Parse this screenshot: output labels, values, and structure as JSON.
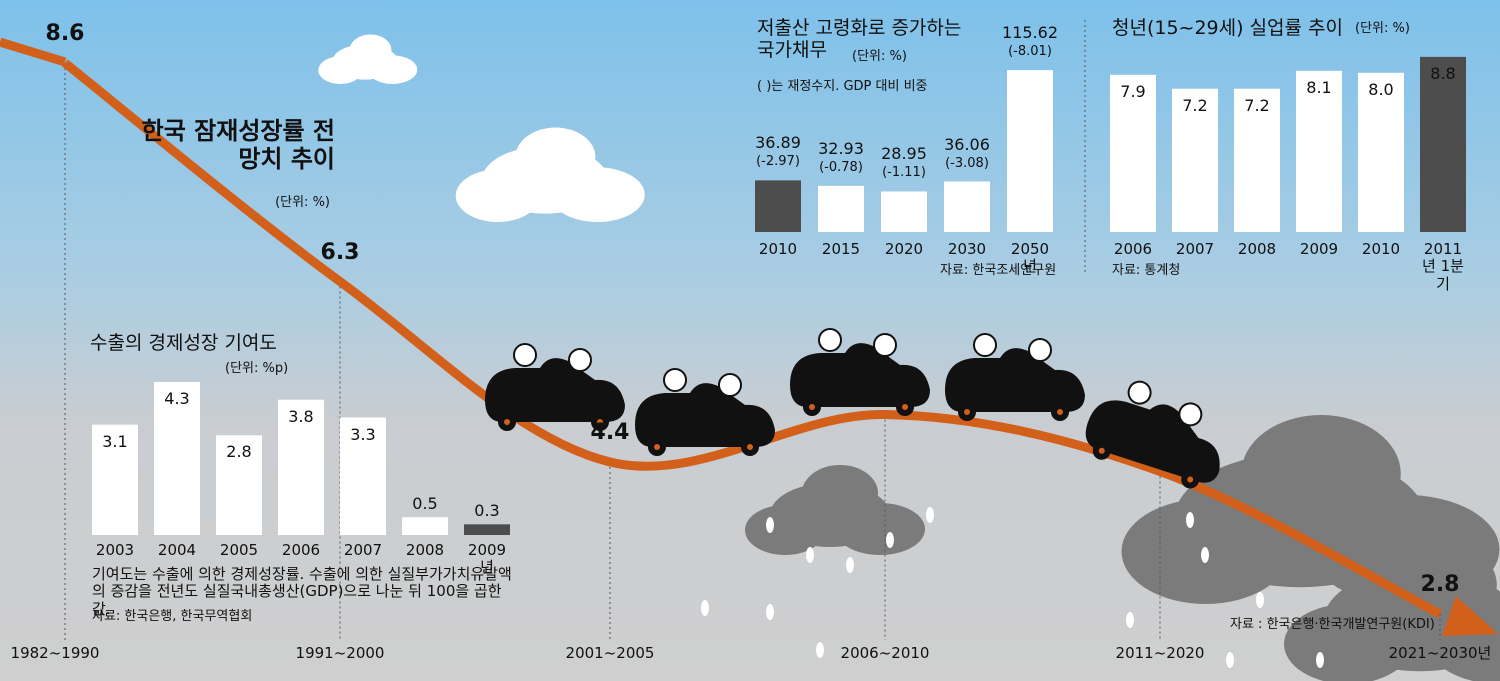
{
  "chart_data": [
    {
      "type": "line",
      "title": "한국 잠재성장률 전망치 추이",
      "unit": "(단위: %)",
      "categories": [
        "1982~1990",
        "1991~2000",
        "2001~2005",
        "2006~2010",
        "2011~2020",
        "2021~2030년"
      ],
      "values": [
        8.6,
        6.3,
        4.4,
        4.9,
        4.3,
        2.8
      ],
      "color": "#d2601a",
      "source": "자료 : 한국은행·한국개발연구원(KDI)"
    },
    {
      "type": "bar",
      "title": "수출의 경제성장 기여도",
      "unit": "(단위: %p)",
      "categories": [
        "2003",
        "2004",
        "2005",
        "2006",
        "2007",
        "2008",
        "2009년"
      ],
      "values": [
        3.1,
        4.3,
        2.8,
        3.8,
        3.3,
        0.5,
        0.3
      ],
      "colors": [
        "#ffffff",
        "#ffffff",
        "#ffffff",
        "#ffffff",
        "#ffffff",
        "#ffffff",
        "#4d4d4d"
      ],
      "note": "기여도는 수출에 의한 경제성장률. 수출에 의한 실질부가가치유발액의 증감을 전년도 실질국내총생산(GDP)으로 나눈 뒤 100을 곱한 값.",
      "source": "자료: 한국은행, 한국무역협회"
    },
    {
      "type": "bar",
      "title": "저출산 고령화로 증가하는 국가채무",
      "unit": "(단위: %)",
      "note": "( )는 재정수지. GDP 대비 비중",
      "categories": [
        "2010",
        "2015",
        "2020",
        "2030",
        "2050년"
      ],
      "values": [
        36.89,
        32.93,
        28.95,
        36.06,
        115.62
      ],
      "balance_values": [
        -2.97,
        -0.78,
        -1.11,
        -3.08,
        -8.01
      ],
      "balance_value_labels": [
        "(-2.97)",
        "(-0.78)",
        "(-1.11)",
        "(-3.08)",
        "(-8.01)"
      ],
      "colors": [
        "#4d4d4d",
        "#ffffff",
        "#ffffff",
        "#ffffff",
        "#ffffff"
      ],
      "source": "자료: 한국조세연구원"
    },
    {
      "type": "bar",
      "title": "청년(15~29세) 실업률 추이",
      "unit": "(단위: %)",
      "categories": [
        "2006",
        "2007",
        "2008",
        "2009",
        "2010",
        "2011년 1분기"
      ],
      "values": [
        7.9,
        7.2,
        7.2,
        8.1,
        8.0,
        8.8
      ],
      "value_labels": [
        "7.9",
        "7.2",
        "7.2",
        "8.1",
        "8.0",
        "8.8"
      ],
      "colors": [
        "#ffffff",
        "#ffffff",
        "#ffffff",
        "#ffffff",
        "#ffffff",
        "#4d4d4d"
      ],
      "source": "자료: 통계청"
    }
  ]
}
